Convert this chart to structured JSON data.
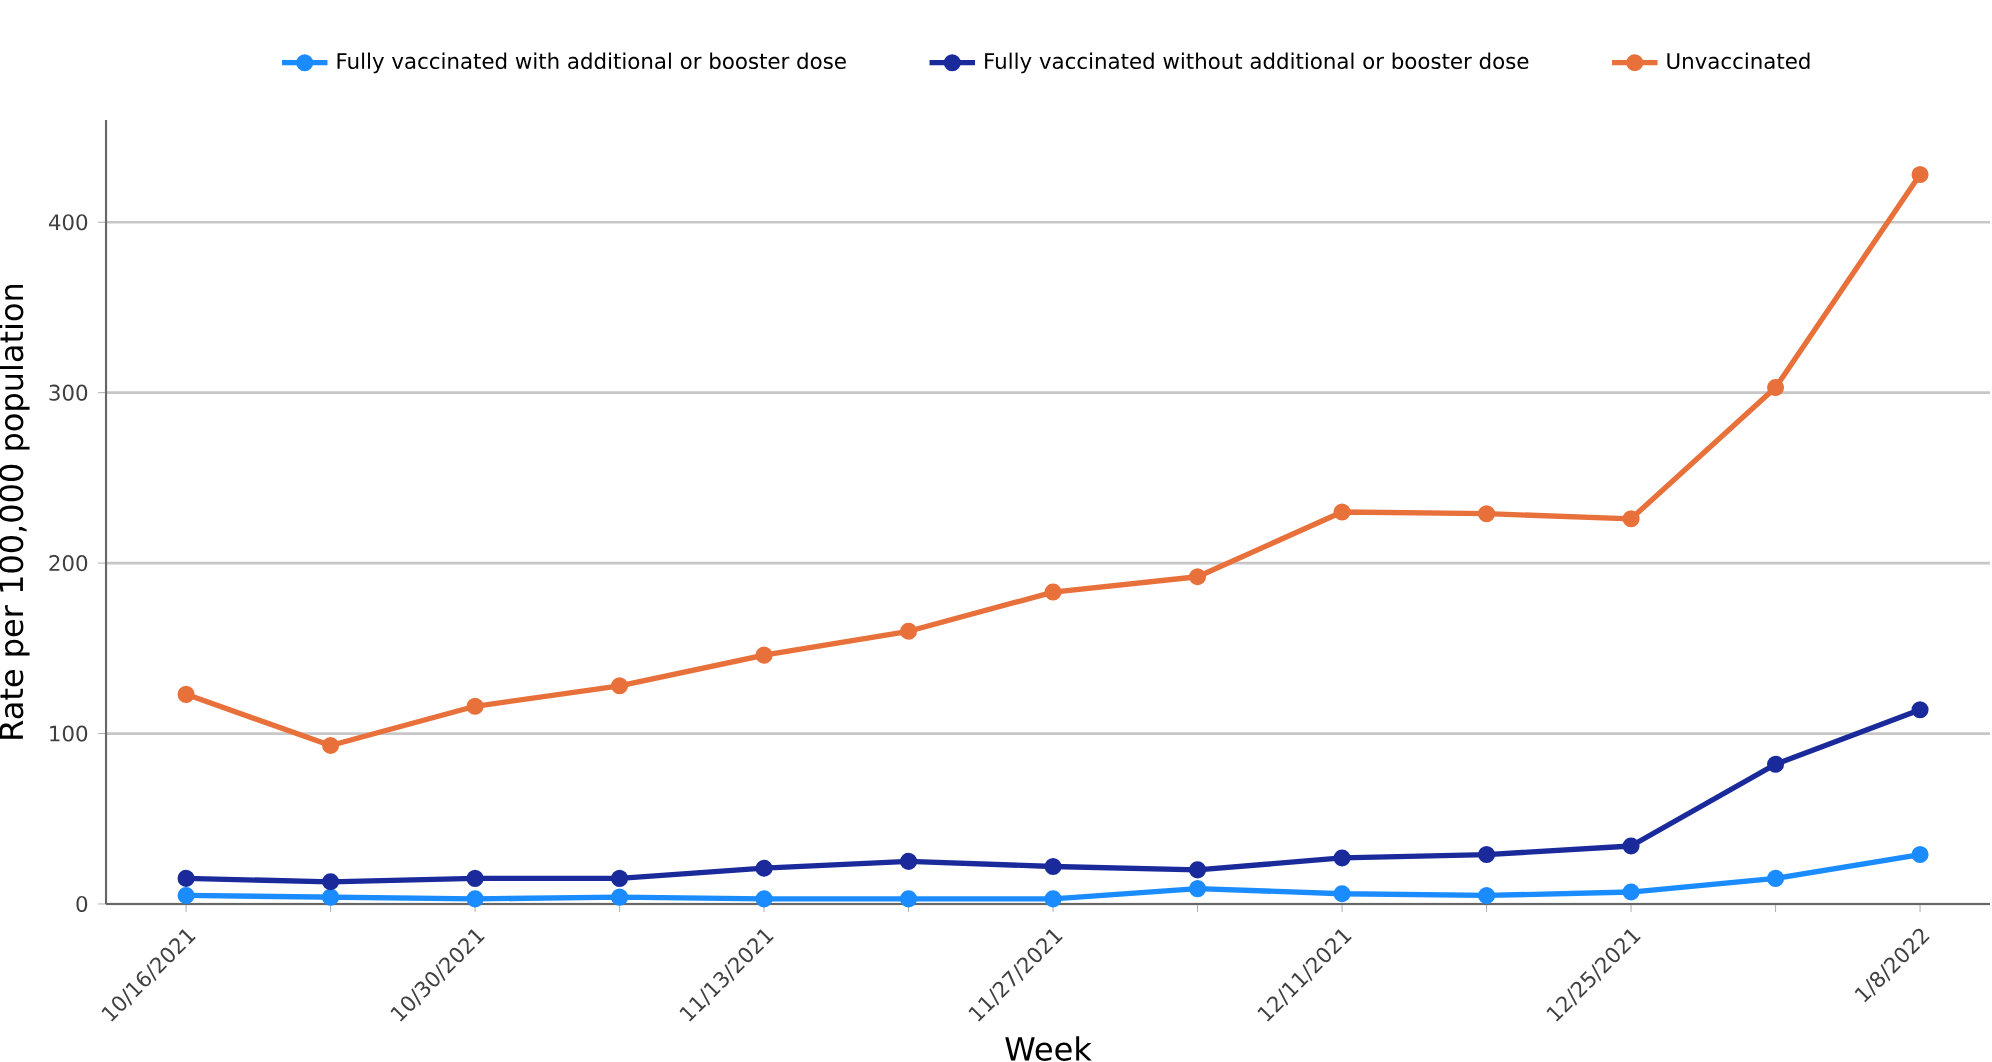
{
  "chart_data": {
    "type": "line",
    "xlabel": "Week",
    "ylabel": "Rate per 100,000 population",
    "categories": [
      "10/16/2021",
      null,
      "10/30/2021",
      null,
      "11/13/2021",
      null,
      "11/27/2021",
      null,
      "12/11/2021",
      null,
      "12/25/2021",
      null,
      "1/8/2022"
    ],
    "series": [
      {
        "name": "Fully vaccinated with additional or booster dose",
        "color": "#1a8cff",
        "values": [
          5,
          4,
          3,
          4,
          3,
          3,
          3,
          9,
          6,
          5,
          7,
          15,
          29
        ]
      },
      {
        "name": "Fully vaccinated without additional or booster dose",
        "color": "#1b2a9b",
        "values": [
          15,
          13,
          15,
          15,
          21,
          25,
          22,
          20,
          27,
          29,
          34,
          82,
          114
        ]
      },
      {
        "name": "Unvaccinated",
        "color": "#e8703a",
        "values": [
          123,
          93,
          116,
          128,
          146,
          160,
          183,
          192,
          230,
          229,
          226,
          303,
          428
        ]
      }
    ],
    "ylim": [
      0,
      460
    ],
    "yticks": [
      0,
      100,
      200,
      300,
      400
    ],
    "grid": "y",
    "legend": "top",
    "marker": "circle",
    "line_style": "solid"
  }
}
